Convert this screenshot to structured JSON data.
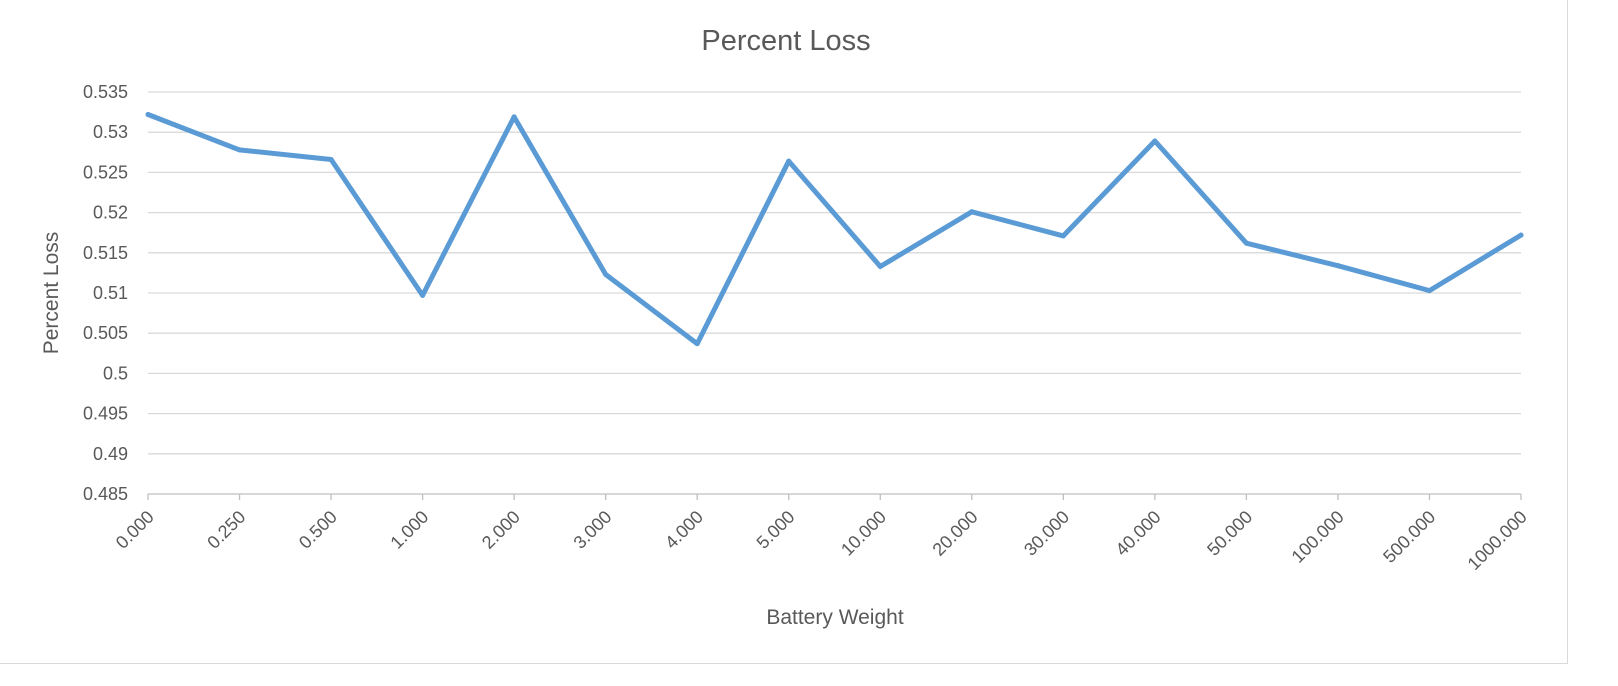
{
  "chart_data": {
    "type": "line",
    "title": "Percent Loss",
    "xlabel": "Battery Weight",
    "ylabel": "Percent Loss",
    "categories": [
      "0.000",
      "0.250",
      "0.500",
      "1.000",
      "2.000",
      "3.000",
      "4.000",
      "5.000",
      "10.000",
      "20.000",
      "30.000",
      "40.000",
      "50.000",
      "100.000",
      "500.000",
      "1000.000"
    ],
    "series": [
      {
        "values": [
          0.5322,
          0.5278,
          0.5266,
          0.5097,
          0.5319,
          0.5123,
          0.5037,
          0.5264,
          0.5133,
          0.5201,
          0.5171,
          0.5289,
          0.5162,
          0.5134,
          0.5103,
          0.5172
        ],
        "color": "#5b9bd5"
      }
    ],
    "y_ticks": [
      "0.485",
      "0.49",
      "0.495",
      "0.5",
      "0.505",
      "0.51",
      "0.515",
      "0.52",
      "0.525",
      "0.53",
      "0.535"
    ],
    "ylim": [
      0.485,
      0.535
    ],
    "grid": true,
    "legend": "none"
  }
}
